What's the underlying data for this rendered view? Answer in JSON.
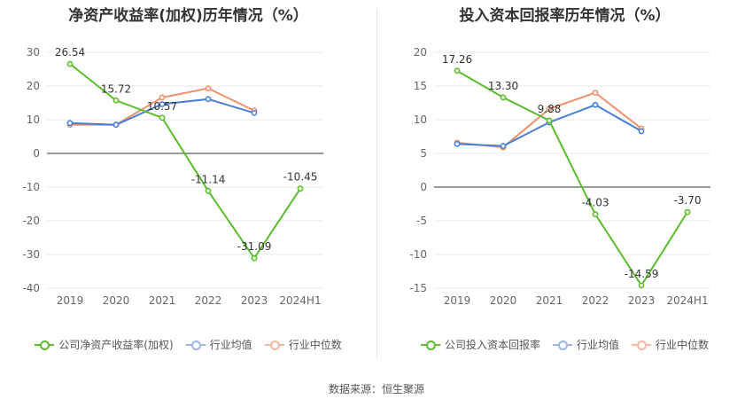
{
  "source": "数据来源：恒生聚源",
  "chart_data": [
    {
      "type": "line",
      "title": "净资产收益率(加权)历年情况（%）",
      "categories": [
        "2019",
        "2020",
        "2021",
        "2022",
        "2023",
        "2024H1"
      ],
      "ylim": [
        -40,
        30
      ],
      "yticks": [
        30,
        20,
        10,
        0,
        -10,
        -20,
        -30,
        -40
      ],
      "grid": true,
      "legend_position": "bottom",
      "series": [
        {
          "name": "公司净资产收益率(加权)",
          "color": "#5bbd2b",
          "values": [
            26.54,
            15.72,
            10.57,
            -11.14,
            -31.09,
            -10.45
          ],
          "labels": [
            "26.54",
            "15.72",
            "10.57",
            "-11.14",
            "-31.09",
            "-10.45"
          ]
        },
        {
          "name": "行业均值",
          "color": "#4a7fd6",
          "values": [
            9.0,
            8.5,
            14.6,
            16.1,
            12.0,
            null
          ]
        },
        {
          "name": "行业中位数",
          "color": "#f0906a",
          "values": [
            8.5,
            8.5,
            16.6,
            19.3,
            12.7,
            null
          ]
        }
      ]
    },
    {
      "type": "line",
      "title": "投入资本回报率历年情况（%）",
      "categories": [
        "2019",
        "2020",
        "2021",
        "2022",
        "2023",
        "2024H1"
      ],
      "ylim": [
        -15,
        20
      ],
      "yticks": [
        20,
        15,
        10,
        5,
        0,
        -5,
        -10,
        -15
      ],
      "grid": true,
      "legend_position": "bottom",
      "series": [
        {
          "name": "公司投入资本回报率",
          "color": "#5bbd2b",
          "values": [
            17.26,
            13.3,
            9.88,
            -4.03,
            -14.59,
            -3.7
          ],
          "labels": [
            "17.26",
            "13.30",
            "9.88",
            "-4.03",
            "-14.59",
            "-3.70"
          ]
        },
        {
          "name": "行业均值",
          "color": "#4a7fd6",
          "values": [
            6.4,
            6.1,
            9.6,
            12.2,
            8.3,
            null
          ]
        },
        {
          "name": "行业中位数",
          "color": "#f0906a",
          "values": [
            6.6,
            5.9,
            11.6,
            14.0,
            8.7,
            null
          ]
        }
      ]
    }
  ]
}
